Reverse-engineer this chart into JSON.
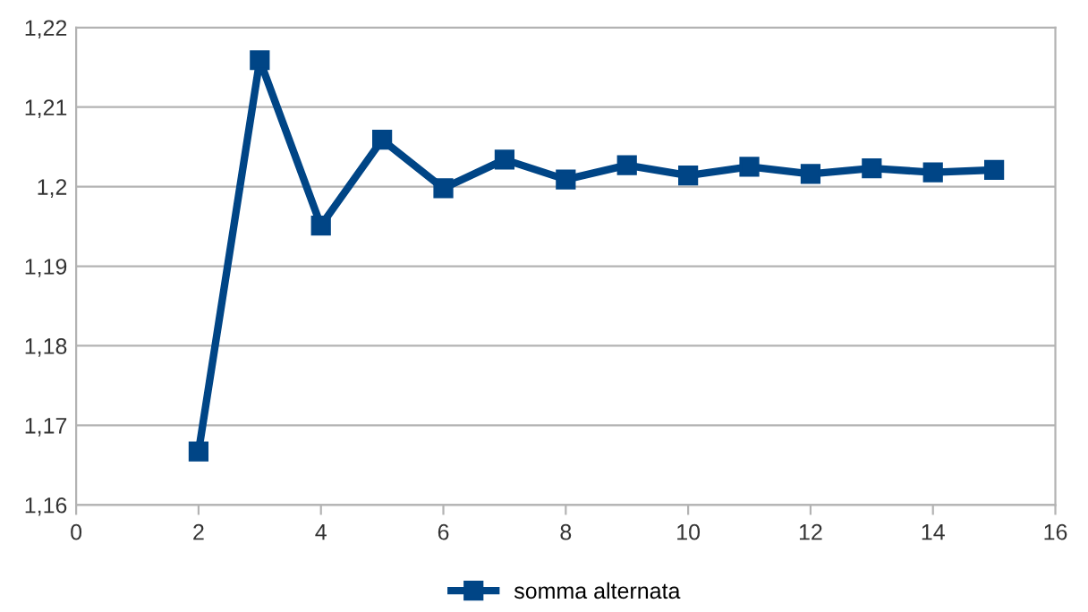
{
  "chart_data": {
    "type": "line",
    "x": [
      2,
      3,
      4,
      5,
      6,
      7,
      8,
      9,
      10,
      11,
      12,
      13,
      14,
      15
    ],
    "series": [
      {
        "name": "somma alternata",
        "color": "#004586",
        "values": [
          1.1667,
          1.2159,
          1.1951,
          1.2059,
          1.1998,
          1.2034,
          1.2009,
          1.2027,
          1.2014,
          1.2025,
          1.2016,
          1.2023,
          1.2018,
          1.2021
        ]
      }
    ],
    "xlim": [
      0,
      16
    ],
    "xticks": [
      0,
      2,
      4,
      6,
      8,
      10,
      12,
      14,
      16
    ],
    "ylim": [
      1.16,
      1.22
    ],
    "yticks": [
      {
        "value": 1.16,
        "label": "1,16"
      },
      {
        "value": 1.17,
        "label": "1,17"
      },
      {
        "value": 1.18,
        "label": "1,18"
      },
      {
        "value": 1.19,
        "label": "1,19"
      },
      {
        "value": 1.2,
        "label": "1,2"
      },
      {
        "value": 1.21,
        "label": "1,21"
      },
      {
        "value": 1.22,
        "label": "1,22"
      }
    ],
    "grid": "y",
    "legend": "bottom",
    "marker": "square",
    "line_style": "solid"
  }
}
